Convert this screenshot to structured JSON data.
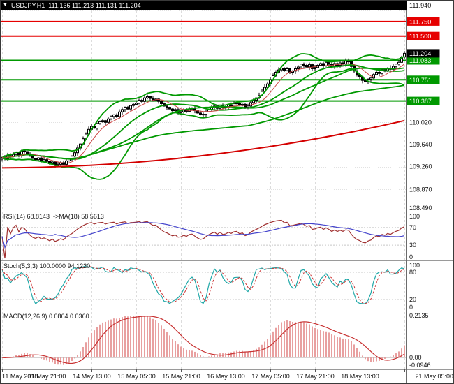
{
  "header": {
    "symbol": "USDJPY,H1",
    "ohlc": "111.136 111.213 111.131 111.204"
  },
  "chart_data": {
    "type": "candlestick",
    "symbol": "USDJPY",
    "timeframe": "H1",
    "ohlc_header": {
      "open": "111.136",
      "high": "111.213",
      "low": "111.131",
      "close": "111.204"
    },
    "ylim": [
      108.49,
      111.94
    ],
    "price_axis_labels": [
      "111.940",
      "110.020",
      "109.640",
      "109.260",
      "108.870",
      "108.490"
    ],
    "horizontal_lines": [
      {
        "price": 111.75,
        "label": "111.750",
        "color": "#e60000"
      },
      {
        "price": 111.5,
        "label": "111.500",
        "color": "#e60000"
      },
      {
        "price": 111.083,
        "label": "111.083",
        "color": "#009900"
      },
      {
        "price": 110.751,
        "label": "110.751",
        "color": "#009900"
      },
      {
        "price": 110.387,
        "label": "110.387",
        "color": "#009900"
      }
    ],
    "current_price": {
      "price": 111.204,
      "label": "111.204",
      "color": "#000000"
    },
    "time_labels": [
      "11 May 2018",
      "11 May 21:00",
      "14 May 13:00",
      "15 May 05:00",
      "15 May 21:00",
      "16 May 13:00",
      "17 May 05:00",
      "17 May 21:00",
      "18 May 13:00",
      "21 May 05:00"
    ],
    "candles_close": [
      109.42,
      109.4,
      109.45,
      109.43,
      109.47,
      109.5,
      109.46,
      109.53,
      109.52,
      109.48,
      109.44,
      109.4,
      109.38,
      109.41,
      109.36,
      109.38,
      109.35,
      109.31,
      109.34,
      109.28,
      109.3,
      109.33,
      109.3,
      109.36,
      109.4,
      109.44,
      109.5,
      109.58,
      109.65,
      109.74,
      109.82,
      109.9,
      109.95,
      109.92,
      110.0,
      110.03,
      110.05,
      110.02,
      110.08,
      110.12,
      110.15,
      110.12,
      110.2,
      110.24,
      110.28,
      110.25,
      110.31,
      110.33,
      110.35,
      110.4,
      110.38,
      110.44,
      110.46,
      110.43,
      110.4,
      110.42,
      110.38,
      110.34,
      110.3,
      110.28,
      110.25,
      110.22,
      110.24,
      110.19,
      110.2,
      110.23,
      110.21,
      110.25,
      110.26,
      110.22,
      110.18,
      110.15,
      110.16,
      110.2,
      110.24,
      110.27,
      110.3,
      110.26,
      110.31,
      110.27,
      110.28,
      110.32,
      110.3,
      110.34,
      110.35,
      110.31,
      110.33,
      110.28,
      110.3,
      110.36,
      110.4,
      110.44,
      110.48,
      110.55,
      110.62,
      110.68,
      110.75,
      110.82,
      110.88,
      110.92,
      110.95,
      110.91,
      110.94,
      110.88,
      110.9,
      110.94,
      110.97,
      111.02,
      111.0,
      110.97,
      111.01,
      110.94,
      110.96,
      111.0,
      111.03,
      110.99,
      111.05,
      111.02,
      110.98,
      111.03,
      111.0,
      111.04,
      111.02,
      111.07,
      111.06,
      110.98,
      110.9,
      110.84,
      110.8,
      110.74,
      110.72,
      110.76,
      110.78,
      110.84,
      110.88,
      110.86,
      110.92,
      110.9,
      110.95,
      110.93,
      110.98,
      111.02,
      111.05,
      111.14,
      111.204
    ],
    "trendline": {
      "color": "#d40000",
      "points": [
        {
          "i": 0,
          "p": 109.24
        },
        {
          "i": 72,
          "p": 109.45
        },
        {
          "i": 144,
          "p": 110.05
        }
      ]
    },
    "overlays": {
      "bollinger_period": 20,
      "bollinger_dev": 2,
      "ma_fast": 8,
      "ma_mid": 34,
      "ma_slow": 89,
      "green": "#009900",
      "red_ma": "#cc4444"
    },
    "indicators": {
      "rsi": {
        "label": "RSI(14) 68.8143  ->MA(18) 58.5613",
        "period": 14,
        "ma_period": 18,
        "axis_labels": [
          "100",
          "70",
          "30",
          "0"
        ],
        "levels": [
          70,
          30
        ],
        "line_color": "#a03030",
        "ma_color": "#4444cc"
      },
      "stoch": {
        "label": "Stoch(5,3,3) 100.0000 94.1220",
        "axis_labels": [
          "100",
          "80",
          "20",
          "0"
        ],
        "levels": [
          80,
          20
        ],
        "k_color": "#20a8a8",
        "d_color": "#cc3333"
      },
      "macd": {
        "label": "MACD(12,26,9) 0.0864 0.0360",
        "axis_labels": [
          "0.2135",
          "0.00",
          "-0.0946"
        ],
        "bar_color": "#e8a0a0",
        "signal_color": "#c83232"
      }
    }
  }
}
